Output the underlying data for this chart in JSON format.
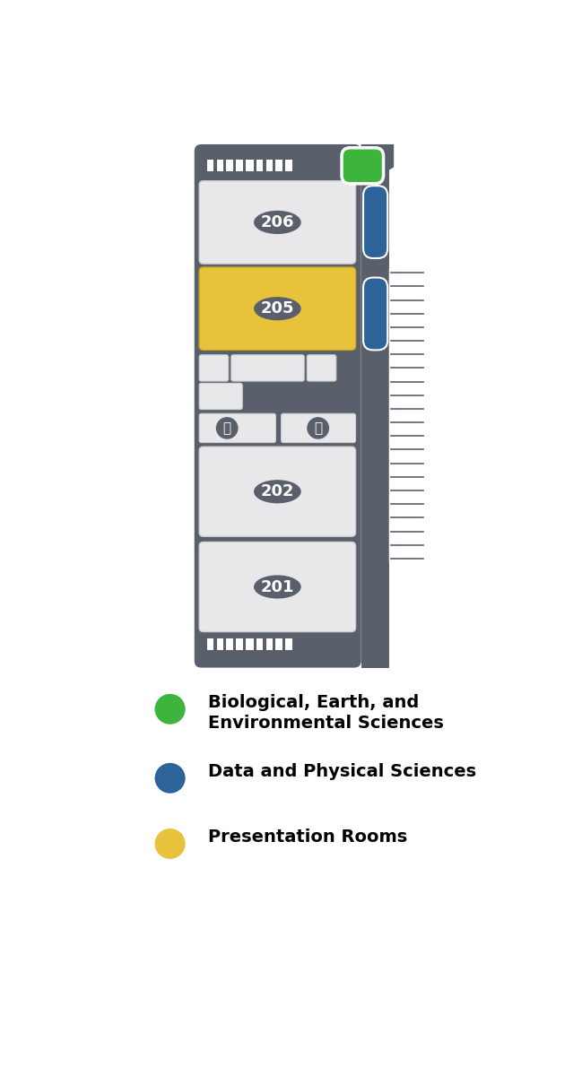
{
  "bg_color": "#595f6b",
  "room_color": "#e8e8ea",
  "room_border": "#d0d0d2",
  "yellow_color": "#e8c23a",
  "blue_color": "#2c6499",
  "green_color": "#3db53d",
  "green_border": "#ffffff",
  "white_color": "#ffffff",
  "room206_label": "206",
  "room205_label": "205",
  "room202_label": "202",
  "room201_label": "201",
  "legend_items": [
    {
      "color": "#3db53d",
      "label1": "Biological, Earth, and",
      "label2": "Environmental Sciences"
    },
    {
      "color": "#2c6499",
      "label1": "Data and Physical Sciences",
      "label2": ""
    },
    {
      "color": "#e8c23a",
      "label1": "Presentation Rooms",
      "label2": ""
    }
  ],
  "hatch_count": 5,
  "stair_lines": 22
}
